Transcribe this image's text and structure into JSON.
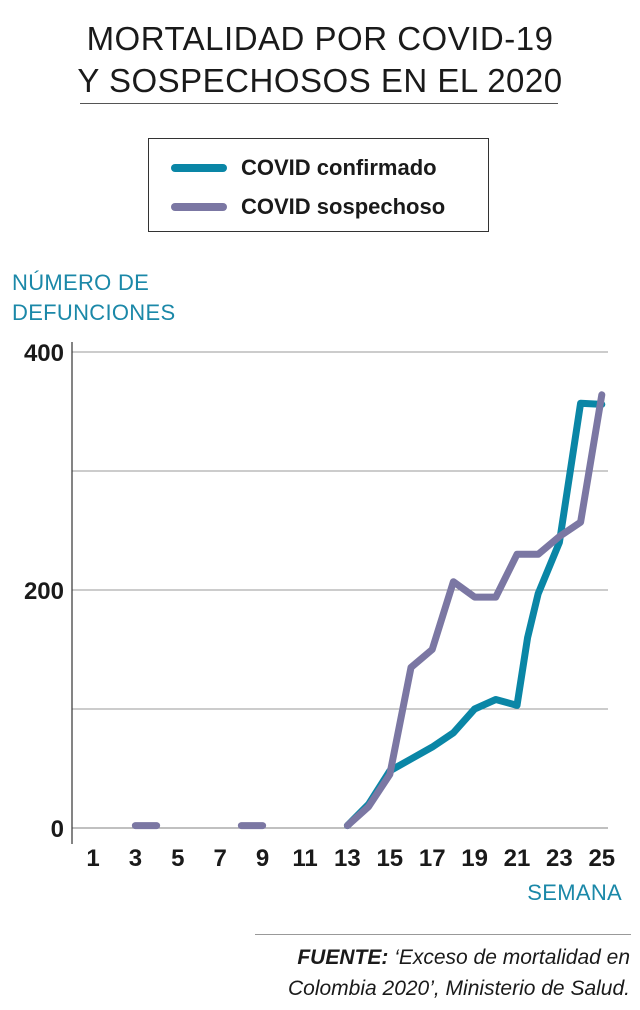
{
  "title": {
    "line1": "MORTALIDAD POR COVID-19",
    "line2": "Y SOSPECHOSOS EN EL 2020"
  },
  "legend": {
    "confirmed_label": "COVID confirmado",
    "suspected_label": "COVID sospechoso"
  },
  "source": {
    "prefix": "FUENTE:",
    "text_line1": " ‘Exceso de mortalidad en",
    "text_line2": "Colombia 2020’, Ministerio de Salud."
  },
  "colors": {
    "confirmed": "#0a86a6",
    "suspected": "#7b77a3",
    "axis_label": "#1b88a8",
    "grid": "#9a9a9a"
  },
  "chart_data": {
    "type": "line",
    "title": "MORTALIDAD POR COVID-19 Y SOSPECHOSOS EN EL 2020",
    "ylabel": "NÚMERO DE DEFUNCIONES",
    "ylabel_line1": "NÚMERO DE",
    "ylabel_line2": "DEFUNCIONES",
    "xlabel": "SEMANA",
    "xlim": [
      0,
      25.5
    ],
    "ylim": [
      0,
      410
    ],
    "xticks": [
      1,
      3,
      5,
      7,
      9,
      11,
      13,
      15,
      17,
      19,
      21,
      23,
      25
    ],
    "yticks_labeled": [
      0,
      200,
      400
    ],
    "gridlines": [
      0,
      100,
      200,
      300,
      400
    ],
    "series": [
      {
        "name": "COVID confirmado",
        "x": [
          13,
          14,
          15,
          16,
          17,
          18,
          19,
          20,
          21,
          21.5,
          22,
          23,
          24,
          25
        ],
        "values": [
          2,
          20,
          48,
          58,
          68,
          80,
          100,
          108,
          103,
          160,
          197,
          240,
          357,
          356
        ]
      },
      {
        "name": "COVID sospechoso",
        "segments": [
          {
            "x": [
              3,
              4
            ],
            "values": [
              2,
              2
            ]
          },
          {
            "x": [
              8,
              9
            ],
            "values": [
              2,
              2
            ]
          },
          {
            "x": [
              13,
              14,
              15,
              16,
              17,
              18,
              19,
              20,
              21,
              22,
              23,
              24,
              25
            ],
            "values": [
              2,
              18,
              45,
              135,
              150,
              207,
              194,
              194,
              230,
              230,
              245,
              257,
              364
            ]
          }
        ]
      }
    ]
  }
}
